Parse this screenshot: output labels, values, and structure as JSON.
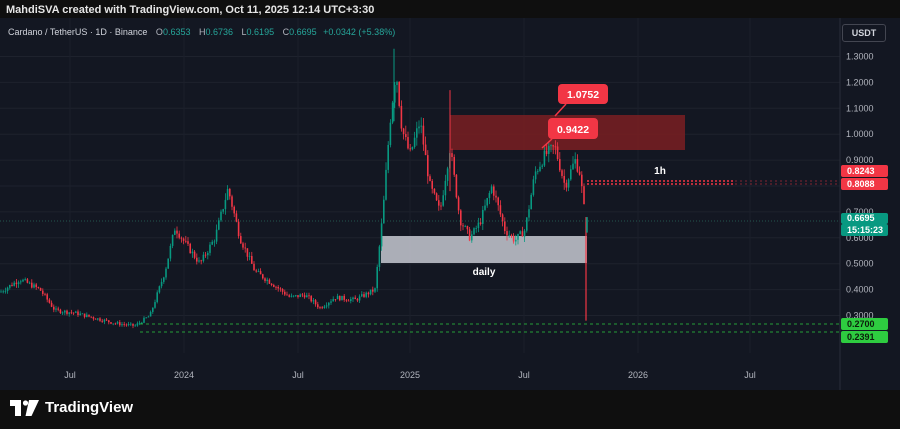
{
  "header": {
    "credit": "MahdiSVA created with TradingView.com, Oct 11, 2025 12:14 UTC+3:30"
  },
  "legend": {
    "symbol": "Cardano / TetherUS · 1D · Binance",
    "o_label": "O",
    "o": "0.6353",
    "h_label": "H",
    "h": "0.6736",
    "l_label": "L",
    "l": "0.6195",
    "c_label": "C",
    "c": "0.6695",
    "change": "+0.0342 (+5.38%)"
  },
  "currency_button": "USDT",
  "price_axis": {
    "ticks": [
      "1.3000",
      "1.2000",
      "1.1000",
      "1.0000",
      "0.9000",
      "0.8000",
      "0.7000",
      "0.6000",
      "0.5000",
      "0.4000",
      "0.3000"
    ],
    "labels": [
      {
        "text": "0.8243",
        "color": "#f23645",
        "price": 0.8243
      },
      {
        "text": "0.8088",
        "color": "#f23645",
        "price": 0.8088
      },
      {
        "text": "0.6695",
        "color": "#089981",
        "price": 0.6695
      },
      {
        "text": "15:15:23",
        "color": "#089981",
        "price": 0.6695,
        "sub": true
      },
      {
        "text": "0.2700",
        "color": "#2ecc40",
        "price": 0.27
      },
      {
        "text": "0.2391",
        "color": "#2ecc40",
        "price": 0.2391
      }
    ]
  },
  "time_axis": [
    "Jul",
    "2024",
    "Jul",
    "2025",
    "Jul",
    "2026",
    "Jul"
  ],
  "annotations": {
    "callout_high": "1.0752",
    "callout_mid": "0.9422",
    "label_1h": "1h",
    "label_daily": "daily"
  },
  "colors": {
    "up": "#089981",
    "down": "#f23645",
    "background": "#131722",
    "zone_red": "#7a1e22",
    "zone_grey": "#b2b5be"
  },
  "brand": {
    "name": "TradingView",
    "icon": "tradingview-logo-icon"
  },
  "chart_data": {
    "type": "candlestick",
    "points": [
      [
        0,
        0.39
      ],
      [
        20,
        0.44
      ],
      [
        40,
        0.4
      ],
      [
        55,
        0.32
      ],
      [
        75,
        0.31
      ],
      [
        95,
        0.29
      ],
      [
        115,
        0.27
      ],
      [
        135,
        0.26
      ],
      [
        150,
        0.3
      ],
      [
        165,
        0.47
      ],
      [
        175,
        0.64
      ],
      [
        185,
        0.58
      ],
      [
        200,
        0.5
      ],
      [
        215,
        0.6
      ],
      [
        228,
        0.79
      ],
      [
        240,
        0.6
      ],
      [
        255,
        0.47
      ],
      [
        270,
        0.43
      ],
      [
        290,
        0.37
      ],
      [
        305,
        0.38
      ],
      [
        320,
        0.33
      ],
      [
        335,
        0.37
      ],
      [
        355,
        0.36
      ],
      [
        375,
        0.4
      ],
      [
        383,
        0.7
      ],
      [
        390,
        1.05
      ],
      [
        396,
        1.25
      ],
      [
        402,
        1.02
      ],
      [
        410,
        0.92
      ],
      [
        420,
        1.05
      ],
      [
        430,
        0.8
      ],
      [
        440,
        0.7
      ],
      [
        450,
        0.95
      ],
      [
        460,
        0.67
      ],
      [
        470,
        0.6
      ],
      [
        480,
        0.66
      ],
      [
        492,
        0.8
      ],
      [
        505,
        0.63
      ],
      [
        515,
        0.59
      ],
      [
        525,
        0.63
      ],
      [
        535,
        0.85
      ],
      [
        545,
        0.92
      ],
      [
        555,
        0.95
      ],
      [
        565,
        0.8
      ],
      [
        575,
        0.9
      ],
      [
        580,
        0.85
      ],
      [
        586,
        0.65
      ]
    ],
    "y_range": [
      0.2,
      1.38
    ]
  }
}
